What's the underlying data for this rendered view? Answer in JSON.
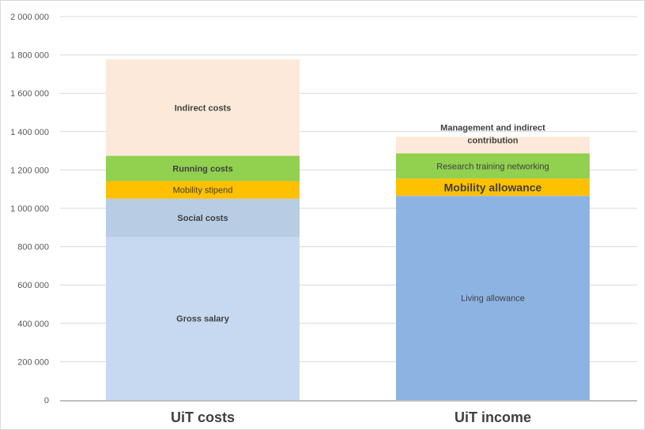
{
  "chart_data": {
    "type": "bar",
    "stacked": true,
    "title": "",
    "xlabel": "",
    "ylabel": "",
    "ylim": [
      0,
      2000000
    ],
    "yticks": [
      0,
      200000,
      400000,
      600000,
      800000,
      1000000,
      1200000,
      1400000,
      1600000,
      1800000,
      2000000
    ],
    "ytick_labels": [
      "0",
      "200 000",
      "400 000",
      "600 000",
      "800 000",
      "1 000 000",
      "1 200 000",
      "1 400 000",
      "1 600 000",
      "1 800 000",
      "2 000 000"
    ],
    "grid": true,
    "categories": [
      "UiT costs",
      "UiT income"
    ],
    "stacks": [
      {
        "category": "UiT costs",
        "segments": [
          {
            "label": "Gross salary",
            "value": 850000,
            "color": "#c6d9f0",
            "bold": true,
            "size": "normal"
          },
          {
            "label": "Social costs",
            "value": 200000,
            "color": "#b8cce4",
            "bold": true,
            "size": "normal"
          },
          {
            "label": "Mobility stipend",
            "value": 92000,
            "color": "#ffc000",
            "bold": false,
            "size": "normal"
          },
          {
            "label": "Running costs",
            "value": 132000,
            "color": "#92d050",
            "bold": true,
            "size": "normal"
          },
          {
            "label": "Indirect costs",
            "value": 503000,
            "color": "#fde9d9",
            "bold": true,
            "size": "normal"
          }
        ]
      },
      {
        "category": "UiT income",
        "segments": [
          {
            "label": "Living allowance",
            "value": 1065000,
            "color": "#8db3e2",
            "bold": false,
            "size": "normal"
          },
          {
            "label": "Mobility allowance",
            "value": 90000,
            "color": "#ffc000",
            "bold": true,
            "size": "large"
          },
          {
            "label": "Research training networking",
            "value": 132000,
            "color": "#92d050",
            "bold": false,
            "size": "normal"
          },
          {
            "label": "Management and indirect contribution",
            "label_lines": [
              "Management and indirect",
              "contribution"
            ],
            "value": 86000,
            "color": "#fde9d9",
            "bold": true,
            "size": "normal"
          }
        ]
      }
    ]
  }
}
